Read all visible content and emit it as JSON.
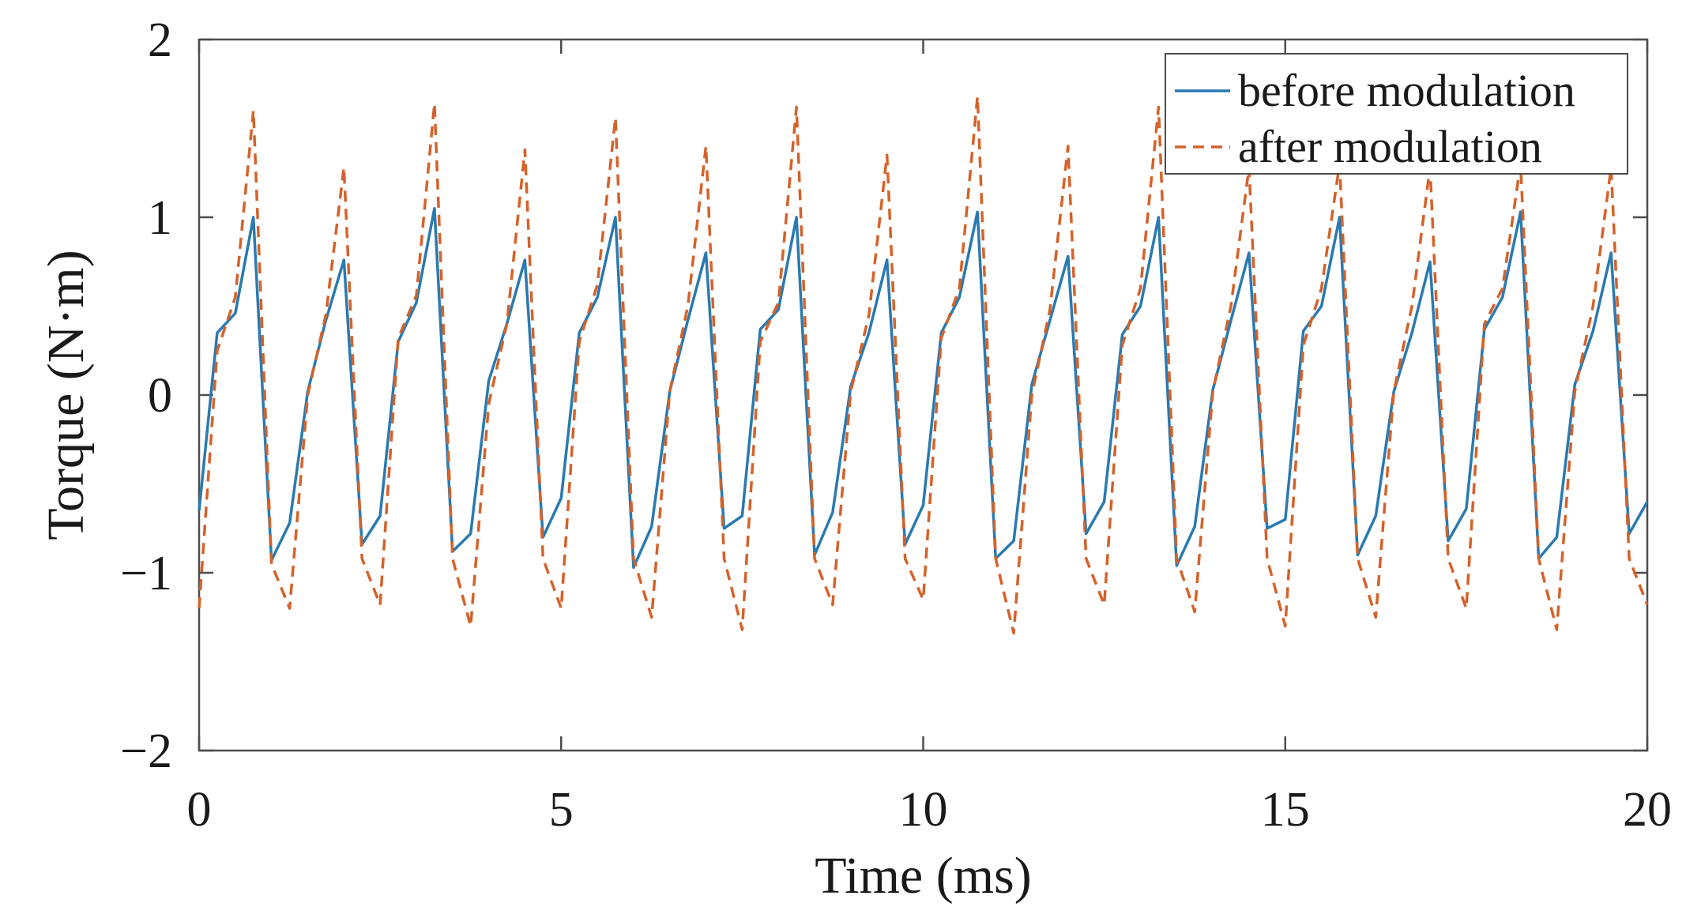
{
  "chart_data": {
    "type": "line",
    "title": "",
    "xlabel": "Time (ms)",
    "ylabel": "Torque (N·m)",
    "xlim": [
      0,
      20
    ],
    "ylim": [
      -2,
      2
    ],
    "xticks": [
      0,
      5,
      10,
      15,
      20
    ],
    "xtick_labels": [
      "0",
      "5",
      "10",
      "15",
      "20"
    ],
    "yticks": [
      -2,
      -1,
      0,
      1,
      2
    ],
    "ytick_labels": [
      "−2",
      "−1",
      "0",
      "1",
      "2"
    ],
    "grid": false,
    "legend_position": "top-right",
    "series": [
      {
        "name": "before modulation",
        "color": "#2a7ab0",
        "style": "solid",
        "x": [
          0,
          0.25,
          0.5,
          0.75,
          1.0,
          1.25,
          1.5,
          1.75,
          2.0,
          2.25,
          2.5,
          2.75,
          3.0,
          3.25,
          3.5,
          3.75,
          4.0,
          4.25,
          4.5,
          4.75,
          5.0,
          5.25,
          5.5,
          5.75,
          6.0,
          6.25,
          6.5,
          6.75,
          7.0,
          7.25,
          7.5,
          7.75,
          8.0,
          8.25,
          8.5,
          8.75,
          9.0,
          9.25,
          9.5,
          9.75,
          10.0,
          10.25,
          10.5,
          10.75,
          11.0,
          11.25,
          11.5,
          11.75,
          12.0,
          12.25,
          12.5,
          12.75,
          13.0,
          13.25,
          13.5,
          13.75,
          14.0,
          14.25,
          14.5,
          14.75,
          15.0,
          15.25,
          15.5,
          15.75,
          16.0,
          16.25,
          16.5,
          16.75,
          17.0,
          17.25,
          17.5,
          17.75,
          18.0,
          18.25,
          18.5,
          18.75,
          19.0,
          19.25,
          19.5,
          19.75,
          20.0
        ],
        "y": [
          -0.65,
          0.35,
          0.46,
          1.0,
          -0.93,
          -0.72,
          0.02,
          0.42,
          0.76,
          -0.84,
          -0.68,
          0.3,
          0.52,
          1.05,
          -0.88,
          -0.78,
          0.08,
          0.4,
          0.76,
          -0.8,
          -0.58,
          0.35,
          0.55,
          1.0,
          -0.97,
          -0.74,
          0.02,
          0.42,
          0.8,
          -0.75,
          -0.68,
          0.37,
          0.48,
          1.0,
          -0.9,
          -0.66,
          0.05,
          0.35,
          0.76,
          -0.84,
          -0.62,
          0.35,
          0.55,
          1.03,
          -0.92,
          -0.82,
          0.06,
          0.42,
          0.78,
          -0.78,
          -0.6,
          0.34,
          0.5,
          1.0,
          -0.96,
          -0.74,
          0.03,
          0.42,
          0.8,
          -0.75,
          -0.7,
          0.36,
          0.5,
          1.0,
          -0.9,
          -0.68,
          0.02,
          0.35,
          0.75,
          -0.82,
          -0.64,
          0.37,
          0.55,
          1.03,
          -0.92,
          -0.8,
          0.06,
          0.36,
          0.8,
          -0.78,
          -0.6
        ]
      },
      {
        "name": "after modulation",
        "color": "#d5622a",
        "style": "dashed",
        "x": [
          0,
          0.25,
          0.5,
          0.75,
          1.0,
          1.25,
          1.5,
          1.75,
          2.0,
          2.25,
          2.5,
          2.75,
          3.0,
          3.25,
          3.5,
          3.75,
          4.0,
          4.25,
          4.5,
          4.75,
          5.0,
          5.25,
          5.5,
          5.75,
          6.0,
          6.25,
          6.5,
          6.75,
          7.0,
          7.25,
          7.5,
          7.75,
          8.0,
          8.25,
          8.5,
          8.75,
          9.0,
          9.25,
          9.5,
          9.75,
          10.0,
          10.25,
          10.5,
          10.75,
          11.0,
          11.25,
          11.5,
          11.75,
          12.0,
          12.25,
          12.5,
          12.75,
          13.0,
          13.25,
          13.5,
          13.75,
          14.0,
          14.25,
          14.5,
          14.75,
          15.0,
          15.25,
          15.5,
          15.75,
          16.0,
          16.25,
          16.5,
          16.75,
          17.0,
          17.25,
          17.5,
          17.75,
          18.0,
          18.25,
          18.5,
          18.75,
          19.0,
          19.25,
          19.5,
          19.75,
          20.0
        ],
        "y": [
          -1.2,
          0.25,
          0.55,
          1.6,
          -0.95,
          -1.2,
          0.0,
          0.45,
          1.28,
          -0.92,
          -1.18,
          0.32,
          0.56,
          1.64,
          -0.92,
          -1.3,
          -0.05,
          0.4,
          1.38,
          -0.92,
          -1.2,
          0.3,
          0.62,
          1.56,
          -0.92,
          -1.25,
          0.02,
          0.5,
          1.4,
          -0.92,
          -1.32,
          0.3,
          0.52,
          1.62,
          -0.92,
          -1.18,
          0.02,
          0.45,
          1.35,
          -0.92,
          -1.15,
          0.32,
          0.6,
          1.68,
          -0.92,
          -1.34,
          0.0,
          0.48,
          1.4,
          -0.92,
          -1.18,
          0.28,
          0.6,
          1.62,
          -0.92,
          -1.22,
          0.02,
          0.5,
          1.28,
          -0.92,
          -1.3,
          0.28,
          0.6,
          1.3,
          -0.92,
          -1.25,
          0.02,
          0.5,
          1.28,
          -0.92,
          -1.2,
          0.4,
          0.6,
          1.3,
          -0.92,
          -1.32,
          0.02,
          0.5,
          1.28,
          -0.92,
          -1.18
        ]
      }
    ]
  }
}
